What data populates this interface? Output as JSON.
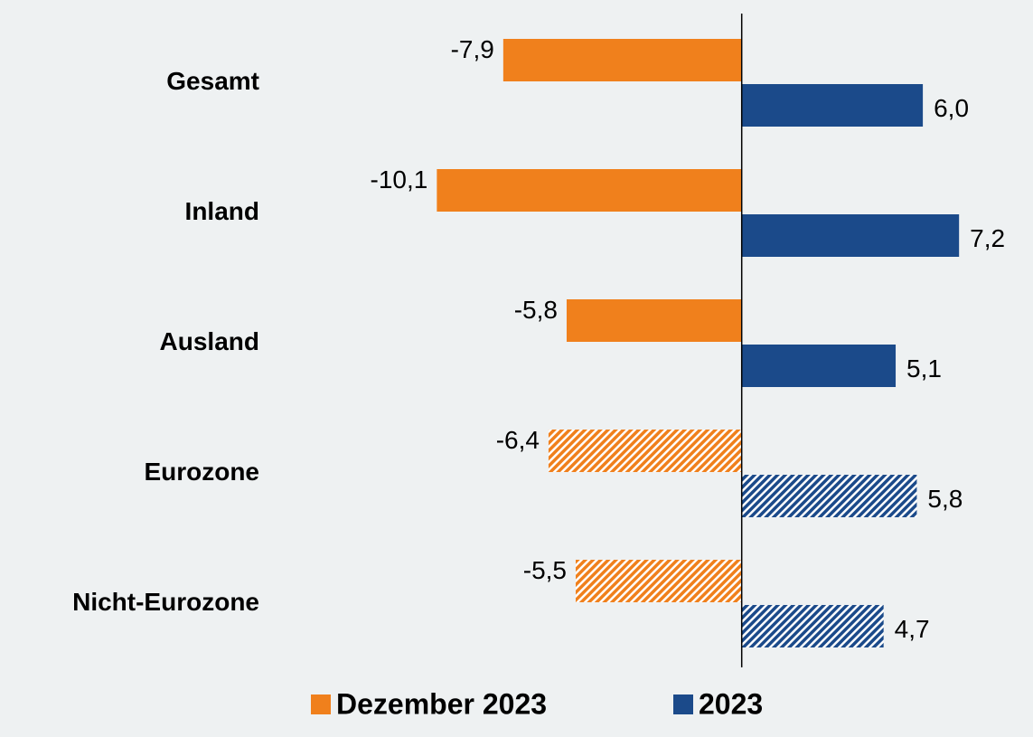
{
  "chart_data": {
    "type": "hbar",
    "categories": [
      "Gesamt",
      "Inland",
      "Ausland",
      "Eurozone",
      "Nicht-Eurozone"
    ],
    "hatch": [
      false,
      false,
      false,
      true,
      true
    ],
    "series": [
      {
        "name": "Dezember 2023",
        "color": "#f0801c",
        "values": [
          -7.9,
          -10.1,
          -5.8,
          -6.4,
          -5.5
        ],
        "value_labels": [
          "-7,9",
          "-10,1",
          "-5,8",
          "-6,4",
          "-5,5"
        ]
      },
      {
        "name": "2023",
        "color": "#1b4a8a",
        "values": [
          6.0,
          7.2,
          5.1,
          5.8,
          4.7
        ],
        "value_labels": [
          "6,0",
          "7,2",
          "5,1",
          "5,8",
          "4,7"
        ]
      }
    ],
    "xlim": [
      -15.5,
      9.5
    ],
    "legend": "bottom"
  }
}
